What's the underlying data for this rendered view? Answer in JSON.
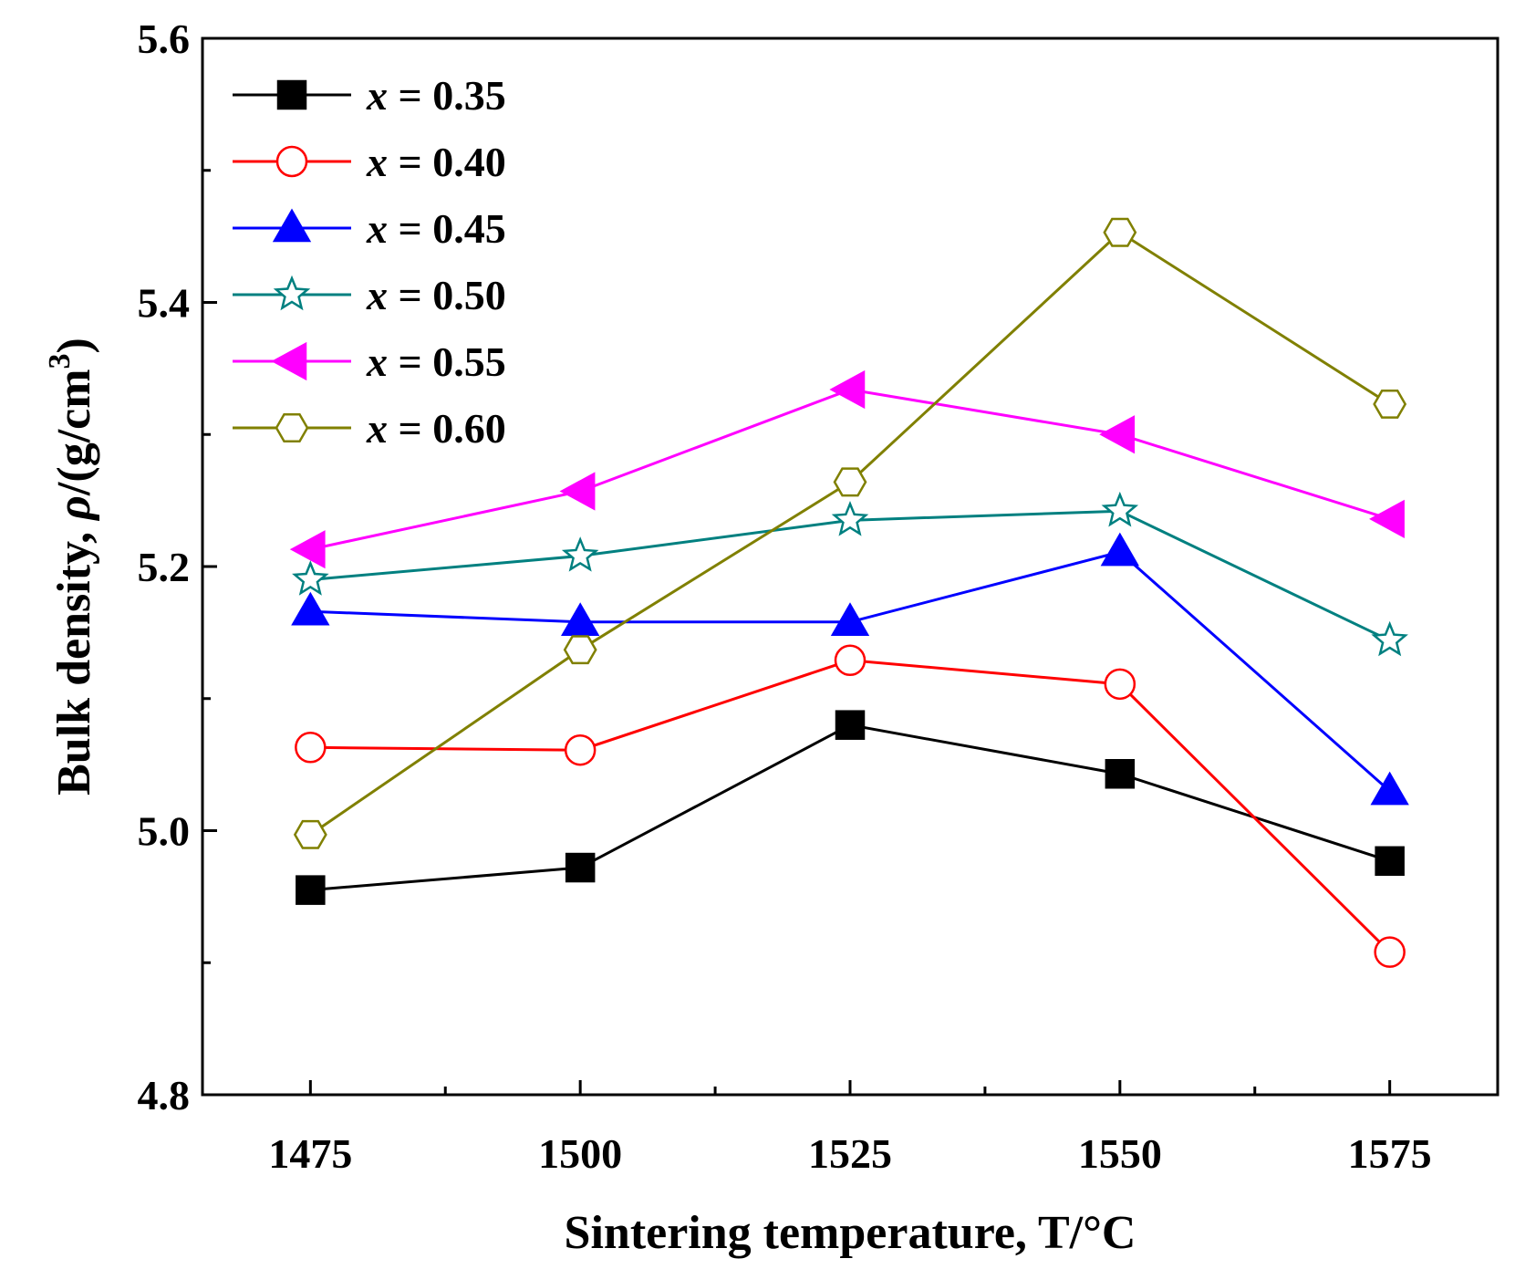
{
  "chart_data": {
    "type": "line",
    "title": "",
    "xlabel": "Sintering temperature, T/°C",
    "ylabel_prefix": "Bulk density, ",
    "ylabel_symbol": "ρ",
    "ylabel_unit": "/(g/cm",
    "ylabel_sup": "3",
    "ylabel_close": ")",
    "x": [
      1475,
      1500,
      1525,
      1550,
      1575
    ],
    "xlim": [
      1465,
      1585
    ],
    "ylim": [
      4.8,
      5.6
    ],
    "xticks": [
      "1475",
      "1500",
      "1525",
      "1550",
      "1575"
    ],
    "yticks": [
      "4.8",
      "5.0",
      "5.2",
      "5.4",
      "5.6"
    ],
    "legend_position": "top-left",
    "grid": false,
    "series": [
      {
        "name": "x = 0.35",
        "var": "x",
        "eq": " = 0.35",
        "color": "#000000",
        "marker": "square-filled",
        "values": [
          4.955,
          4.972,
          5.08,
          5.043,
          4.977
        ]
      },
      {
        "name": "x = 0.40",
        "var": "x",
        "eq": " = 0.40",
        "color": "#ff0000",
        "marker": "circle-open",
        "values": [
          5.063,
          5.061,
          5.129,
          5.111,
          4.908
        ]
      },
      {
        "name": "x = 0.45",
        "var": "x",
        "eq": " = 0.45",
        "color": "#0000ff",
        "marker": "triangle-up-filled",
        "values": [
          5.166,
          5.158,
          5.158,
          5.211,
          5.03
        ]
      },
      {
        "name": "x = 0.50",
        "var": "x",
        "eq": " = 0.50",
        "color": "#008080",
        "marker": "star-open",
        "values": [
          5.19,
          5.208,
          5.235,
          5.242,
          5.144
        ]
      },
      {
        "name": "x = 0.55",
        "var": "x",
        "eq": " = 0.55",
        "color": "#ff00ff",
        "marker": "triangle-left-filled",
        "values": [
          5.213,
          5.257,
          5.334,
          5.3,
          5.236
        ]
      },
      {
        "name": "x = 0.60",
        "var": "x",
        "eq": " = 0.60",
        "color": "#808000",
        "marker": "hexagon-open",
        "values": [
          4.997,
          5.137,
          5.264,
          5.453,
          5.323
        ]
      }
    ]
  }
}
